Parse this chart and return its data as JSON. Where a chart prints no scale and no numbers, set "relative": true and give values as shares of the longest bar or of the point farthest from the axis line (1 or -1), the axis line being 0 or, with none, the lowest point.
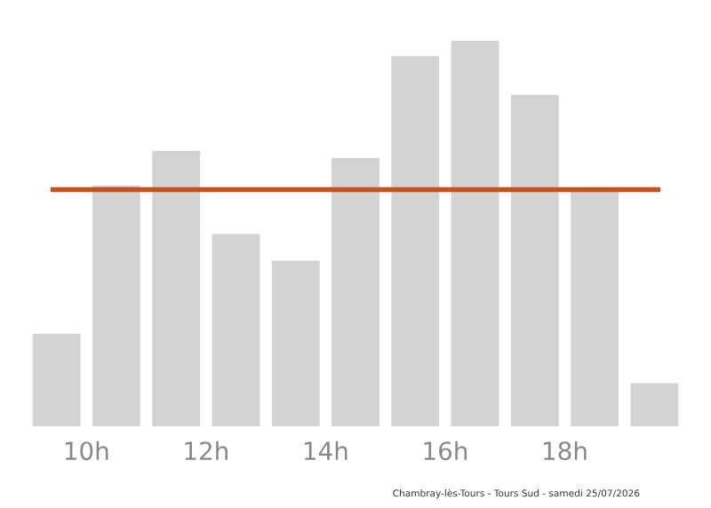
{
  "chart_data": {
    "type": "bar",
    "relative": true,
    "x": [
      9.5,
      10.5,
      11.5,
      12.5,
      13.5,
      14.5,
      15.5,
      16.5,
      17.5,
      18.5,
      19.5
    ],
    "values": [
      0.24,
      0.625,
      0.714,
      0.499,
      0.43,
      0.696,
      0.96,
      1,
      0.86,
      0.61,
      0.112
    ],
    "color": "#d3d3d3",
    "xlim": [
      9,
      20
    ],
    "xticks": [
      {
        "value": 10,
        "label": "10h"
      },
      {
        "value": 12,
        "label": "12h"
      },
      {
        "value": 14,
        "label": "14h"
      },
      {
        "value": 16,
        "label": "16h"
      },
      {
        "value": 18,
        "label": "18h"
      }
    ],
    "ref_lines": [
      {
        "axis": "y",
        "value": 0.614,
        "color": "#c8501e"
      }
    ],
    "tick_labels": "x",
    "grid": false,
    "legend": false,
    "annotations": [
      "Chambray-lès-Tours - Tours Sud - samedi 25/07/2026"
    ]
  }
}
